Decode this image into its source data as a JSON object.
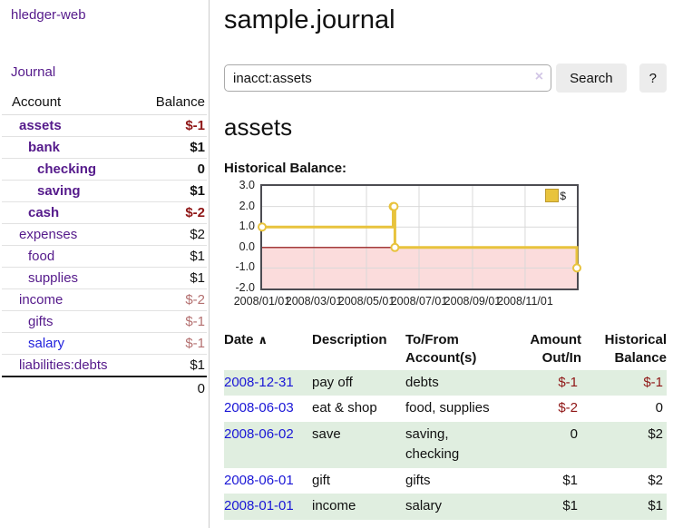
{
  "app": {
    "brand": "hledger-web",
    "nav": {
      "journal": "Journal"
    }
  },
  "sidebar": {
    "columns": {
      "account": "Account",
      "balance": "Balance"
    },
    "accounts": [
      {
        "name": "assets",
        "balance": "$-1",
        "indent": 1,
        "bold": true,
        "balance_class": "neg-strong"
      },
      {
        "name": "bank",
        "balance": "$1",
        "indent": 2,
        "bold": true,
        "balance_class": ""
      },
      {
        "name": "checking",
        "balance": "0",
        "indent": 3,
        "bold": true,
        "balance_class": ""
      },
      {
        "name": "saving",
        "balance": "$1",
        "indent": 3,
        "bold": true,
        "balance_class": ""
      },
      {
        "name": "cash",
        "balance": "$-2",
        "indent": 2,
        "bold": true,
        "balance_class": "neg-strong"
      },
      {
        "name": "expenses",
        "balance": "$2",
        "indent": 1,
        "bold": false,
        "balance_class": ""
      },
      {
        "name": "food",
        "balance": "$1",
        "indent": 2,
        "bold": false,
        "balance_class": ""
      },
      {
        "name": "supplies",
        "balance": "$1",
        "indent": 2,
        "bold": false,
        "balance_class": ""
      },
      {
        "name": "income",
        "balance": "$-2",
        "indent": 1,
        "bold": false,
        "balance_class": "neg-muted"
      },
      {
        "name": "gifts",
        "balance": "$-1",
        "indent": 2,
        "bold": false,
        "balance_class": "neg-muted"
      },
      {
        "name": "salary",
        "balance": "$-1",
        "indent": 2,
        "bold": false,
        "balance_class": "neg-muted",
        "link_variant": "unvisited"
      },
      {
        "name": "liabilities:debts",
        "balance": "$1",
        "indent": 1,
        "bold": false,
        "balance_class": ""
      }
    ],
    "total": "0"
  },
  "header": {
    "title": "sample.journal"
  },
  "search": {
    "value": "inacct:assets",
    "clear_icon": "×",
    "button_label": "Search",
    "help_label": "?"
  },
  "account_page": {
    "title": "assets",
    "section_label": "Historical Balance:"
  },
  "chart_data": {
    "type": "line",
    "step": true,
    "title": "Historical Balance:",
    "series": [
      {
        "name": "$",
        "color": "#e8c33d",
        "points": [
          [
            "2008-01-01",
            1
          ],
          [
            "2008-06-01",
            2
          ],
          [
            "2008-06-02",
            2
          ],
          [
            "2008-06-03",
            0
          ],
          [
            "2008-12-31",
            -1
          ]
        ]
      }
    ],
    "ylim": [
      -2,
      3
    ],
    "yticks": [
      "3.0",
      "2.0",
      "1.0",
      "0.0",
      "-1.0",
      "-2.0"
    ],
    "xticks": [
      "2008/01/01",
      "2008/03/01",
      "2008/05/01",
      "2008/07/01",
      "2008/09/01",
      "2008/11/01"
    ],
    "legend": {
      "position": "top-right",
      "label": "$",
      "swatch_color": "#e8c33d"
    },
    "grid": true,
    "negative_region_fill": "#fbdcdc",
    "zero_line_color": "#8b0000",
    "marker": {
      "fill": "#ffffff",
      "stroke": "#e8c33d"
    }
  },
  "transactions": {
    "headers": [
      {
        "label": "Date",
        "sort_indicator": "∧",
        "align": "left"
      },
      {
        "label": "Description",
        "align": "left"
      },
      {
        "label": "To/From Account(s)",
        "align": "left"
      },
      {
        "label": "Amount Out/In",
        "align": "right"
      },
      {
        "label": "Historical Balance",
        "align": "right"
      }
    ],
    "rows": [
      {
        "date": "2008-12-31",
        "description": "pay off",
        "accounts": "debts",
        "amount": "$-1",
        "amount_negative": true,
        "balance": "$-1",
        "balance_negative": true
      },
      {
        "date": "2008-06-03",
        "description": "eat & shop",
        "accounts": "food, supplies",
        "amount": "$-2",
        "amount_negative": true,
        "balance": "0",
        "balance_negative": false
      },
      {
        "date": "2008-06-02",
        "description": "save",
        "accounts": "saving, checking",
        "amount": "0",
        "amount_negative": false,
        "balance": "$2",
        "balance_negative": false
      },
      {
        "date": "2008-06-01",
        "description": "gift",
        "accounts": "gifts",
        "amount": "$1",
        "amount_negative": false,
        "balance": "$2",
        "balance_negative": false
      },
      {
        "date": "2008-01-01",
        "description": "income",
        "accounts": "salary",
        "amount": "$1",
        "amount_negative": false,
        "balance": "$1",
        "balance_negative": false
      }
    ]
  },
  "colors": {
    "link_purple": "#551a8b",
    "link_blue": "#1a16d6",
    "negative_strong": "#8f1616",
    "negative_muted": "#b47070",
    "row_stripe_green": "#e0eee0",
    "chart_gold": "#e8c33d",
    "grid_gray": "#d9d9d9"
  }
}
